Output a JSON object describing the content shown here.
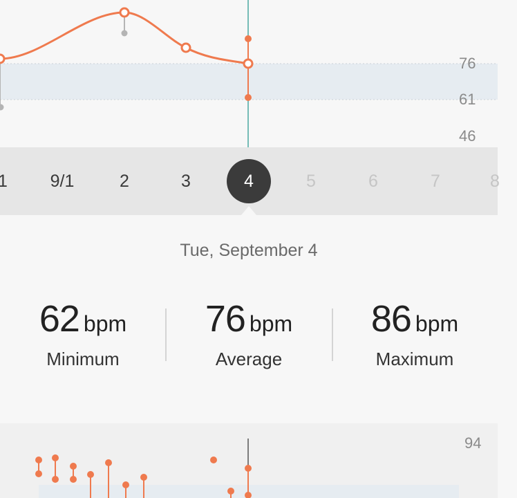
{
  "colors": {
    "accent": "#ef7a4e",
    "range_band": "#e6ecf1",
    "cursor_line": "#4aa8a0",
    "muted_point": "#b4b4b4",
    "strip_bg": "#e6e6e6",
    "selected_bg": "#3b3b3b"
  },
  "top_chart": {
    "y_ticks": [
      "76",
      "61",
      "46"
    ]
  },
  "date_strip": {
    "dates": [
      {
        "label": "1",
        "state": "past"
      },
      {
        "label": "9/1",
        "state": "past"
      },
      {
        "label": "2",
        "state": "past"
      },
      {
        "label": "3",
        "state": "past"
      },
      {
        "label": "4",
        "state": "selected"
      },
      {
        "label": "5",
        "state": "future"
      },
      {
        "label": "6",
        "state": "future"
      },
      {
        "label": "7",
        "state": "future"
      },
      {
        "label": "8",
        "state": "future"
      }
    ]
  },
  "detail": {
    "date": "Tue, September 4",
    "unit": "bpm",
    "stats": [
      {
        "value": "62",
        "label": "Minimum"
      },
      {
        "value": "76",
        "label": "Average"
      },
      {
        "value": "86",
        "label": "Maximum"
      }
    ]
  },
  "bottom_chart": {
    "y_tick": "94"
  }
}
